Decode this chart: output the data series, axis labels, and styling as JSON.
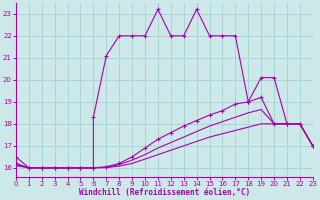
{
  "xlabel": "Windchill (Refroidissement éolien,°C)",
  "xlim": [
    0,
    23
  ],
  "ylim": [
    15.6,
    23.5
  ],
  "xticks": [
    0,
    1,
    2,
    3,
    4,
    5,
    6,
    7,
    8,
    9,
    10,
    11,
    12,
    13,
    14,
    15,
    16,
    17,
    18,
    19,
    20,
    21,
    22,
    23
  ],
  "yticks": [
    16,
    17,
    18,
    19,
    20,
    21,
    22,
    23
  ],
  "bg_color": "#cce8e8",
  "grid_color": "#aad4d4",
  "line_color": "#aa00aa",
  "curve1": {
    "x": [
      0,
      1,
      2,
      3,
      4,
      5,
      6,
      6,
      7,
      8,
      9,
      10,
      11,
      12,
      13,
      14,
      15,
      16,
      17,
      18,
      19,
      20,
      21,
      22,
      23
    ],
    "y": [
      16.5,
      16.0,
      16.0,
      16.0,
      16.0,
      16.0,
      16.0,
      18.3,
      21.1,
      22.0,
      22.0,
      22.0,
      23.2,
      22.0,
      22.0,
      23.2,
      22.0,
      22.0,
      22.0,
      19.0,
      20.1,
      20.1,
      18.0,
      18.0,
      17.0
    ],
    "marker": "+"
  },
  "curve2": {
    "x": [
      0,
      1,
      2,
      3,
      4,
      5,
      6,
      7,
      8,
      9,
      10,
      11,
      12,
      13,
      14,
      15,
      16,
      17,
      18,
      19,
      20,
      21,
      22,
      23
    ],
    "y": [
      16.2,
      16.0,
      16.0,
      16.0,
      16.0,
      16.0,
      16.0,
      16.05,
      16.2,
      16.5,
      16.9,
      17.3,
      17.6,
      17.9,
      18.15,
      18.4,
      18.6,
      18.9,
      19.0,
      19.2,
      18.0,
      18.0,
      18.0,
      17.0
    ],
    "marker": "+"
  },
  "curve3": {
    "x": [
      0,
      1,
      2,
      3,
      4,
      5,
      6,
      7,
      8,
      9,
      10,
      11,
      12,
      13,
      14,
      15,
      16,
      17,
      18,
      19,
      20,
      21,
      22,
      23
    ],
    "y": [
      16.15,
      16.0,
      16.0,
      16.0,
      16.0,
      16.0,
      16.0,
      16.03,
      16.15,
      16.35,
      16.6,
      16.9,
      17.15,
      17.4,
      17.65,
      17.9,
      18.1,
      18.3,
      18.5,
      18.65,
      18.0,
      18.0,
      18.0,
      17.0
    ],
    "marker": null
  },
  "curve4": {
    "x": [
      0,
      1,
      2,
      3,
      4,
      5,
      6,
      7,
      8,
      9,
      10,
      11,
      12,
      13,
      14,
      15,
      16,
      17,
      18,
      19,
      20,
      21,
      22,
      23
    ],
    "y": [
      16.1,
      16.0,
      16.0,
      16.0,
      16.0,
      16.0,
      16.0,
      16.01,
      16.08,
      16.2,
      16.4,
      16.6,
      16.8,
      17.0,
      17.2,
      17.4,
      17.55,
      17.7,
      17.85,
      18.0,
      18.0,
      18.0,
      18.0,
      17.0
    ],
    "marker": null
  }
}
